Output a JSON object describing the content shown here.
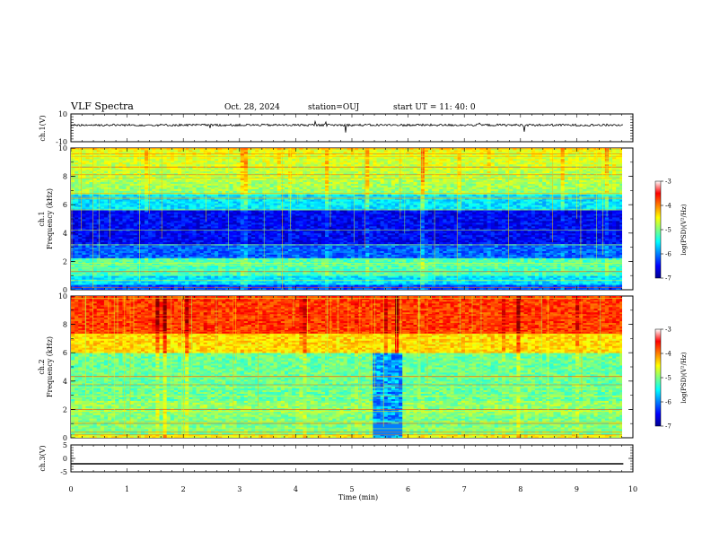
{
  "header": {
    "title": "VLF Spectra",
    "date": "Oct. 28, 2024",
    "station": "station=OUJ",
    "start": "start  UT =   11: 40: 0"
  },
  "chart_data": [
    {
      "type": "line",
      "panel": "ch1-waveform",
      "ylabel": "ch.1(V)",
      "ylim": [
        -10,
        10
      ],
      "yticks": [
        "10",
        "-10"
      ],
      "series": [
        {
          "values": [
            2.0
          ]
        }
      ]
    },
    {
      "type": "heatmap",
      "panel": "ch1-spectrogram",
      "ylabel": "ch.1\nFrequency (kHz)",
      "ylim": [
        0,
        10
      ],
      "yticks": [
        "0",
        "2",
        "4",
        "6",
        "8",
        "10"
      ],
      "colorbar": {
        "label": "log(PSD)(V²/Hz)",
        "ticks": [
          "-3",
          "-4",
          "-5",
          "-6",
          "-7"
        ],
        "range": [
          -7,
          -3
        ]
      }
    },
    {
      "type": "heatmap",
      "panel": "ch2-spectrogram",
      "ylabel": "ch.2\nFrequency (kHz)",
      "ylim": [
        0,
        10
      ],
      "yticks": [
        "0",
        "2",
        "4",
        "6",
        "8",
        "10"
      ],
      "colorbar": {
        "label": "log(PSD)(V²/Hz)",
        "ticks": [
          "-3",
          "-4",
          "-5",
          "-6",
          "-7"
        ],
        "range": [
          -7,
          -3
        ]
      }
    },
    {
      "type": "line",
      "panel": "ch3-waveform",
      "ylabel": "ch.3(V)",
      "ylim": [
        -5,
        5
      ],
      "yticks": [
        "5",
        "0",
        "-5"
      ],
      "series": [
        {
          "values": [
            -2.0
          ]
        }
      ]
    }
  ],
  "xaxis": {
    "label": "Time  (min)",
    "ticks": [
      "0",
      "1",
      "2",
      "3",
      "4",
      "5",
      "6",
      "7",
      "8",
      "9",
      "10"
    ],
    "range": [
      0,
      10
    ],
    "data_end": 9.83
  }
}
